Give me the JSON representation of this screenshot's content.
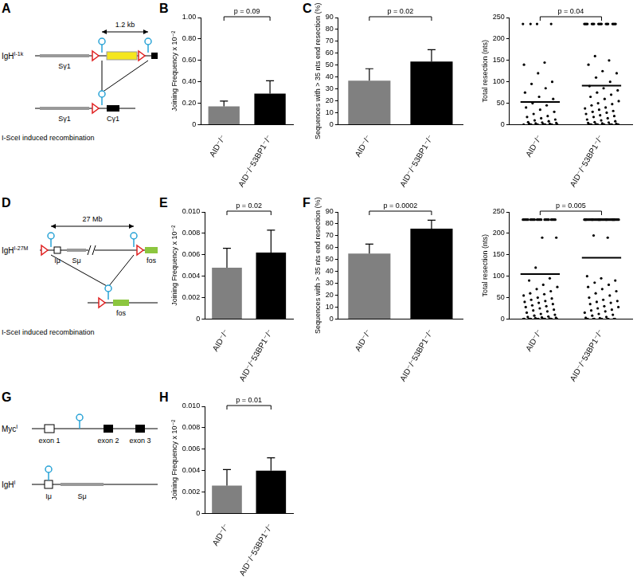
{
  "diagrams": [
    {
      "panel": "A",
      "locus": "IgH",
      "locus_superscript": "I-1k",
      "distance": "1.2 kb",
      "switch": "Sγ1",
      "constant": "Cγ1",
      "product": "I-SceI induced recombination"
    },
    {
      "panel": "D",
      "locus": "IgH",
      "locus_superscript": "I-27M",
      "distance": "27 Mb",
      "promoter": "Iμ",
      "switch": "Sμ",
      "target": "fos",
      "product": "I-SceI induced recombination"
    },
    {
      "panel": "G",
      "loci": [
        {
          "locus": "Myc",
          "locus_superscript": "I",
          "features": [
            "exon 1",
            "exon 2",
            "exon 3"
          ]
        },
        {
          "locus": "IgH",
          "locus_superscript": "I",
          "features": [
            "Iμ",
            "Sμ"
          ]
        }
      ]
    }
  ],
  "chart_data": [
    {
      "panel": "B",
      "type": "bar",
      "categories": [
        "AID⁻/⁻",
        "AID⁻/⁻53BP1⁻/⁻"
      ],
      "values": [
        0.17,
        0.29
      ],
      "errors": [
        0.05,
        0.12
      ],
      "colors": [
        "#808080",
        "#000000"
      ],
      "ylabel": "Joining Frequency x 10⁻²",
      "ylim": [
        0,
        1
      ],
      "yticks": [
        0,
        {
          "value": 0.2,
          "label": "0.20"
        },
        {
          "value": 0.4,
          "label": "0.40"
        },
        {
          "value": 0.6,
          "label": "0.60"
        },
        {
          "value": 0.8,
          "label": "0.80"
        },
        {
          "value": 1,
          "label": "1.00"
        }
      ],
      "annotation": "p = 0.09",
      "grid": false
    },
    {
      "panel": "C",
      "type": "bar",
      "categories": [
        "AID⁻/⁻",
        "AID⁻/⁻53BP1⁻/⁻"
      ],
      "values": [
        37,
        53
      ],
      "errors": [
        10,
        10
      ],
      "colors": [
        "#808080",
        "#000000"
      ],
      "ylabel": "Sequences with > 35 nts end resection (%)",
      "ylim": [
        0,
        90
      ],
      "yticks": [
        0,
        10,
        20,
        30,
        40,
        50,
        60,
        70,
        80,
        90
      ],
      "annotation": "p = 0.02",
      "grid": false
    },
    {
      "type": "scatter",
      "categories": [
        "AID⁻/⁻",
        "AID⁻/⁻53BP1⁻/⁻"
      ],
      "values": [
        [
          235,
          235,
          235,
          235,
          145,
          140,
          120,
          100,
          95,
          85,
          75,
          65,
          60,
          50,
          45,
          40,
          35,
          30,
          25,
          20,
          18,
          15,
          12,
          10,
          8,
          6,
          5,
          4,
          3,
          2,
          2,
          1,
          0,
          0,
          0,
          0,
          0,
          0,
          0,
          0,
          0,
          0
        ],
        [
          235,
          235,
          235,
          235,
          235,
          235,
          235,
          235,
          235,
          235,
          235,
          235,
          235,
          235,
          235,
          235,
          235,
          235,
          160,
          150,
          140,
          125,
          120,
          110,
          100,
          90,
          85,
          80,
          75,
          70,
          65,
          60,
          55,
          50,
          48,
          45,
          40,
          38,
          35,
          32,
          30,
          28,
          25,
          22,
          20,
          18,
          15,
          12,
          10,
          8,
          6,
          5,
          4,
          3,
          2,
          1,
          0,
          0,
          0,
          0,
          0,
          0,
          0,
          0,
          0,
          0,
          0,
          0
        ]
      ],
      "means": [
        53,
        91
      ],
      "color": "#000000",
      "ylabel": "Total resection (nts)",
      "ylim": [
        0,
        250
      ],
      "yticks": [
        0,
        50,
        100,
        150,
        200,
        250
      ],
      "annotation": "p = 0.04",
      "grid": false
    },
    {
      "panel": "E",
      "type": "bar",
      "categories": [
        "AID⁻/⁻",
        "AID⁻/⁻53BP1⁻/⁻"
      ],
      "values": [
        0.0048,
        0.0062
      ],
      "errors": [
        0.0018,
        0.0021
      ],
      "colors": [
        "#808080",
        "#000000"
      ],
      "ylabel": "Joining Frequency x 10⁻²",
      "ylim": [
        0,
        0.01
      ],
      "yticks": [
        0,
        0.002,
        0.004,
        0.006,
        0.008,
        {
          "value": 0.01,
          "label": "0.010"
        }
      ],
      "annotation": "p = 0.02",
      "grid": false
    },
    {
      "panel": "F",
      "type": "bar",
      "categories": [
        "AID⁻/⁻",
        "AID⁻/⁻53BP1⁻/⁻"
      ],
      "values": [
        55,
        76
      ],
      "errors": [
        8,
        7
      ],
      "colors": [
        "#808080",
        "#000000"
      ],
      "ylabel": "Sequences with > 35 nts end resection (%)",
      "ylim": [
        0,
        90
      ],
      "yticks": [
        0,
        10,
        20,
        30,
        40,
        50,
        60,
        70,
        80,
        90
      ],
      "annotation": "p = 0.0002",
      "grid": false
    },
    {
      "type": "scatter",
      "categories": [
        "AID⁻/⁻",
        "AID⁻/⁻53BP1⁻/⁻"
      ],
      "values": [
        [
          232,
          232,
          232,
          232,
          232,
          232,
          232,
          232,
          232,
          232,
          232,
          232,
          232,
          232,
          232,
          232,
          232,
          232,
          232,
          232,
          232,
          232,
          232,
          232,
          232,
          232,
          190,
          190,
          120,
          95,
          90,
          80,
          75,
          70,
          65,
          60,
          58,
          55,
          50,
          48,
          45,
          42,
          40,
          38,
          35,
          32,
          30,
          28,
          25,
          22,
          20,
          18,
          15,
          12,
          10,
          8,
          6,
          5,
          4,
          3,
          2,
          1,
          0,
          0,
          0,
          0,
          0,
          0,
          0,
          0,
          0,
          0,
          0,
          0,
          0,
          0
        ],
        [
          232,
          232,
          232,
          232,
          232,
          232,
          232,
          232,
          232,
          232,
          232,
          232,
          232,
          232,
          232,
          232,
          232,
          232,
          232,
          232,
          232,
          232,
          232,
          232,
          232,
          232,
          232,
          232,
          232,
          232,
          232,
          232,
          232,
          232,
          232,
          232,
          232,
          232,
          232,
          232,
          232,
          232,
          232,
          232,
          232,
          195,
          190,
          100,
          95,
          90,
          85,
          80,
          75,
          70,
          65,
          60,
          55,
          50,
          45,
          42,
          40,
          38,
          35,
          30,
          28,
          25,
          22,
          20,
          18,
          15,
          12,
          10,
          8,
          5,
          3,
          2,
          0,
          0,
          0,
          0,
          0,
          0,
          0,
          0,
          0,
          0
        ]
      ],
      "means": [
        105,
        143
      ],
      "color": "#000000",
      "ylabel": "Total resection (nts)",
      "ylim": [
        0,
        250
      ],
      "yticks": [
        0,
        50,
        100,
        150,
        200,
        250
      ],
      "annotation": "p = 0.005",
      "grid": false
    },
    {
      "panel": "H",
      "type": "bar",
      "categories": [
        "AID⁻/⁻",
        "AID⁻/⁻53BP1⁻/⁻"
      ],
      "values": [
        0.0026,
        0.004
      ],
      "errors": [
        0.0015,
        0.0012
      ],
      "colors": [
        "#808080",
        "#000000"
      ],
      "ylabel": "Joining Frequency x 10⁻²",
      "ylim": [
        0,
        0.01
      ],
      "yticks": [
        0,
        0.002,
        0.004,
        0.006,
        0.008,
        {
          "value": 0.01,
          "label": "0.010"
        }
      ],
      "annotation": "p = 0.01",
      "grid": false
    }
  ]
}
